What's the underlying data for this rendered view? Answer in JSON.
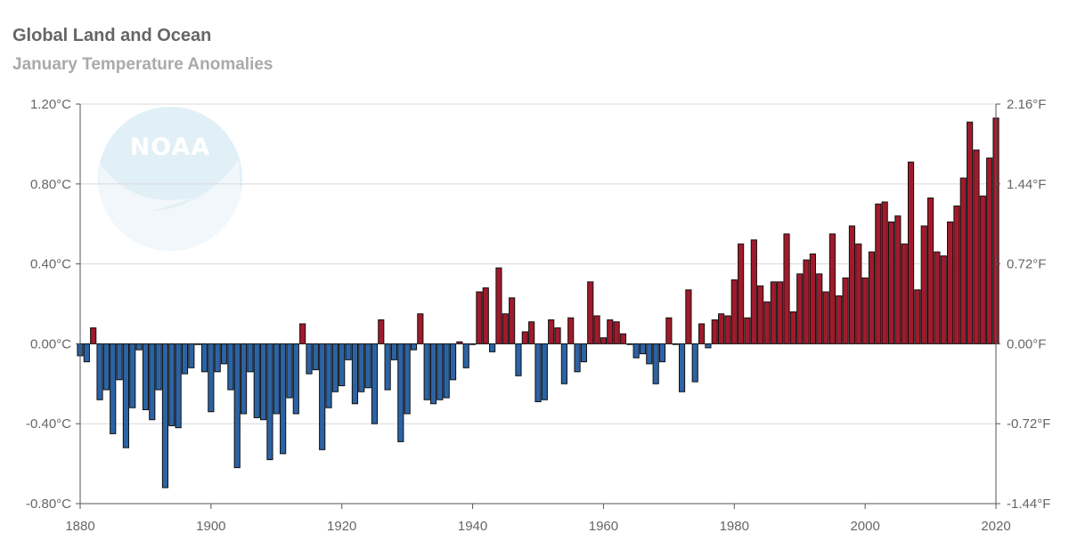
{
  "chart_data": {
    "type": "bar",
    "title": "Global Land and Ocean",
    "subtitle": "January Temperature Anomalies",
    "xlabel": "",
    "ylabel": "",
    "xlim": [
      1880,
      2020
    ],
    "ylim": [
      -0.8,
      1.2
    ],
    "x_ticks": [
      "1880",
      "1900",
      "1920",
      "1940",
      "1960",
      "1980",
      "2000",
      "2020"
    ],
    "y_ticks_left": [
      "1.20°C",
      "0.80°C",
      "0.40°C",
      "0.00°C",
      "-0.40°C",
      "-0.80°C"
    ],
    "y_ticks_right": [
      "2.16°F",
      "1.44°F",
      "0.72°F",
      "0.00°F",
      "-0.72°F",
      "-1.44°F"
    ],
    "grid": true,
    "positive_color": "#a11a2c",
    "negative_color": "#2c63a4",
    "watermark_text": "NOAA",
    "years": [
      1880,
      1881,
      1882,
      1883,
      1884,
      1885,
      1886,
      1887,
      1888,
      1889,
      1890,
      1891,
      1892,
      1893,
      1894,
      1895,
      1896,
      1897,
      1898,
      1899,
      1900,
      1901,
      1902,
      1903,
      1904,
      1905,
      1906,
      1907,
      1908,
      1909,
      1910,
      1911,
      1912,
      1913,
      1914,
      1915,
      1916,
      1917,
      1918,
      1919,
      1920,
      1921,
      1922,
      1923,
      1924,
      1925,
      1926,
      1927,
      1928,
      1929,
      1930,
      1931,
      1932,
      1933,
      1934,
      1935,
      1936,
      1937,
      1938,
      1939,
      1940,
      1941,
      1942,
      1943,
      1944,
      1945,
      1946,
      1947,
      1948,
      1949,
      1950,
      1951,
      1952,
      1953,
      1954,
      1955,
      1956,
      1957,
      1958,
      1959,
      1960,
      1961,
      1962,
      1963,
      1964,
      1965,
      1966,
      1967,
      1968,
      1969,
      1970,
      1971,
      1972,
      1973,
      1974,
      1975,
      1976,
      1977,
      1978,
      1979,
      1980,
      1981,
      1982,
      1983,
      1984,
      1985,
      1986,
      1987,
      1988,
      1989,
      1990,
      1991,
      1992,
      1993,
      1994,
      1995,
      1996,
      1997,
      1998,
      1999,
      2000,
      2001,
      2002,
      2003,
      2004,
      2005,
      2006,
      2007,
      2008,
      2009,
      2010,
      2011,
      2012,
      2013,
      2014,
      2015,
      2016,
      2017,
      2018,
      2019,
      2020
    ],
    "values": [
      -0.06,
      -0.09,
      0.08,
      -0.28,
      -0.23,
      -0.45,
      -0.18,
      -0.52,
      -0.32,
      -0.03,
      -0.33,
      -0.38,
      -0.23,
      -0.72,
      -0.41,
      -0.42,
      -0.15,
      -0.12,
      0.0,
      -0.14,
      -0.34,
      -0.14,
      -0.1,
      -0.23,
      -0.62,
      -0.35,
      -0.14,
      -0.37,
      -0.38,
      -0.58,
      -0.35,
      -0.55,
      -0.27,
      -0.35,
      0.1,
      -0.15,
      -0.13,
      -0.53,
      -0.32,
      -0.24,
      -0.21,
      -0.08,
      -0.3,
      -0.24,
      -0.22,
      -0.4,
      0.12,
      -0.23,
      -0.08,
      -0.49,
      -0.35,
      -0.03,
      0.15,
      -0.28,
      -0.3,
      -0.28,
      -0.27,
      -0.18,
      0.01,
      -0.12,
      0.0,
      0.26,
      0.28,
      -0.04,
      0.38,
      0.15,
      0.23,
      -0.16,
      0.06,
      0.11,
      -0.29,
      -0.28,
      0.12,
      0.08,
      -0.2,
      0.13,
      -0.14,
      -0.09,
      0.31,
      0.14,
      0.03,
      0.12,
      0.11,
      0.05,
      0.0,
      -0.07,
      -0.05,
      -0.1,
      -0.2,
      -0.09,
      0.13,
      0.0,
      -0.24,
      0.27,
      -0.19,
      0.1,
      -0.02,
      0.12,
      0.15,
      0.14,
      0.32,
      0.5,
      0.13,
      0.52,
      0.29,
      0.21,
      0.31,
      0.31,
      0.55,
      0.16,
      0.35,
      0.42,
      0.45,
      0.35,
      0.26,
      0.55,
      0.24,
      0.33,
      0.59,
      0.5,
      0.33,
      0.46,
      0.7,
      0.71,
      0.61,
      0.64,
      0.5,
      0.91,
      0.27,
      0.59,
      0.73,
      0.46,
      0.44,
      0.61,
      0.69,
      0.83,
      1.11,
      0.97,
      0.74,
      0.93,
      1.13
    ]
  }
}
